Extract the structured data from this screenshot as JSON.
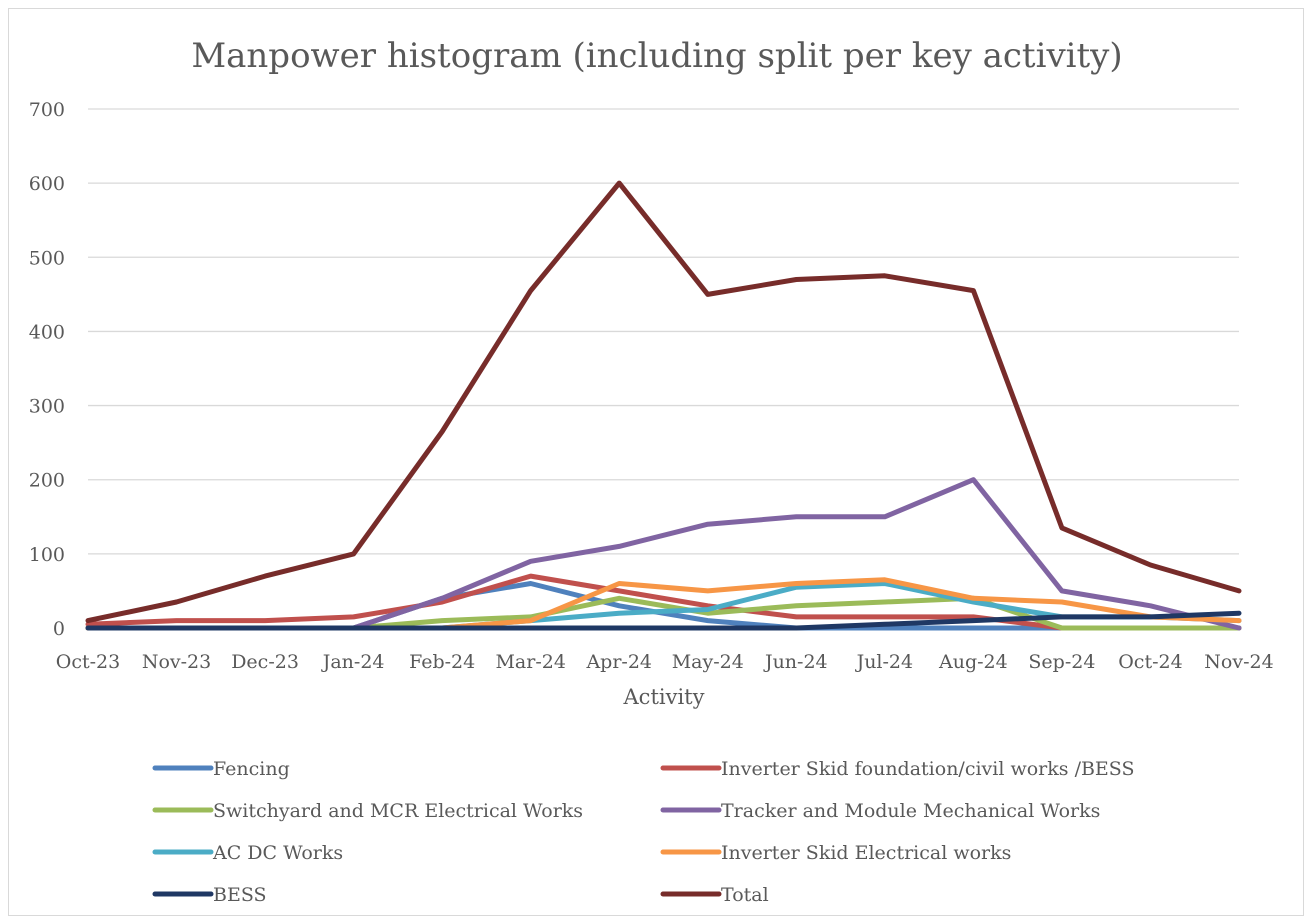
{
  "chart_data": {
    "type": "line",
    "title": "Manpower histogram (including split per key activity)",
    "xlabel": "Activity",
    "ylabel": "",
    "ylim": [
      0,
      700
    ],
    "yticks": [
      0,
      100,
      200,
      300,
      400,
      500,
      600,
      700
    ],
    "grid": true,
    "legend_position": "bottom",
    "categories": [
      "Oct-23",
      "Nov-23",
      "Dec-23",
      "Jan-24",
      "Feb-24",
      "Mar-24",
      "Apr-24",
      "May-24",
      "Jun-24",
      "Jul-24",
      "Aug-24",
      "Sep-24",
      "Oct-24",
      "Nov-24"
    ],
    "series": [
      {
        "name": "Fencing",
        "color": "#4f81bd",
        "values": [
          0,
          0,
          0,
          0,
          40,
          60,
          30,
          10,
          0,
          0,
          0,
          0,
          0,
          0
        ]
      },
      {
        "name": "Inverter Skid foundation/civil works /BESS",
        "color": "#c0504d",
        "values": [
          5,
          10,
          10,
          15,
          35,
          70,
          50,
          30,
          15,
          15,
          15,
          0,
          0,
          0
        ]
      },
      {
        "name": "Switchyard and MCR Electrical Works",
        "color": "#9bbb59",
        "values": [
          0,
          0,
          0,
          0,
          10,
          15,
          40,
          20,
          30,
          35,
          40,
          0,
          0,
          0
        ]
      },
      {
        "name": "Tracker and Module Mechanical Works",
        "color": "#8064a2",
        "values": [
          0,
          0,
          0,
          0,
          40,
          90,
          110,
          140,
          150,
          150,
          200,
          50,
          30,
          0
        ]
      },
      {
        "name": "AC DC Works",
        "color": "#4bacc6",
        "values": [
          0,
          0,
          0,
          0,
          0,
          10,
          20,
          25,
          55,
          60,
          35,
          15,
          15,
          10
        ]
      },
      {
        "name": "Inverter Skid Electrical works",
        "color": "#f79646",
        "values": [
          0,
          0,
          0,
          0,
          0,
          10,
          60,
          50,
          60,
          65,
          40,
          35,
          15,
          10
        ]
      },
      {
        "name": "BESS",
        "color": "#1f3864",
        "values": [
          0,
          0,
          0,
          0,
          0,
          0,
          0,
          0,
          0,
          5,
          10,
          15,
          15,
          20
        ]
      },
      {
        "name": "Total",
        "color": "#772c2a",
        "values": [
          10,
          35,
          70,
          100,
          265,
          455,
          600,
          450,
          470,
          475,
          455,
          135,
          85,
          50
        ]
      }
    ]
  }
}
